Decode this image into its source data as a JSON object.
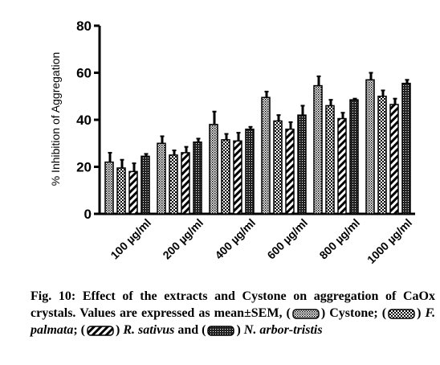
{
  "chart_data": {
    "type": "bar",
    "ylabel": "% Inhibition of Aggregation",
    "xlabel": "",
    "ylim": [
      0,
      80
    ],
    "yticks": [
      "0",
      "20",
      "40",
      "60",
      "80"
    ],
    "categories": [
      "100 µg/ml",
      "200 µg/ml",
      "400 µg/ml",
      "600 µg/ml",
      "800 µg/ml",
      "1000 µg/ml"
    ],
    "series": [
      {
        "name": "Cystone",
        "pattern": "dots",
        "values": [
          22,
          30,
          38,
          49.5,
          54.5,
          57
        ],
        "errors": [
          4,
          3,
          5.5,
          2.5,
          4,
          3
        ]
      },
      {
        "name": "F. palmata",
        "pattern": "checker",
        "values": [
          19.5,
          25,
          31.5,
          39.5,
          46,
          50
        ],
        "errors": [
          3.5,
          2,
          2.5,
          2.5,
          2.5,
          2.5
        ]
      },
      {
        "name": "R. sativus",
        "pattern": "diagonal",
        "values": [
          18,
          26,
          31,
          36,
          40.5,
          46.5
        ],
        "errors": [
          3.5,
          2.5,
          3.5,
          3,
          2.5,
          2.5
        ]
      },
      {
        "name": "N. arbor-tristis",
        "pattern": "crosshatch",
        "values": [
          24.5,
          30.5,
          36,
          42,
          48.5,
          55.5
        ],
        "errors": [
          1,
          1.5,
          1,
          4,
          0.5,
          1.5
        ]
      }
    ],
    "grid": false,
    "legend": "in caption"
  },
  "caption": {
    "lead": "Fig. 10: Effect of the extracts and Cystone on aggregation of CaOx crystals. Values are expressed as mean±SEM,",
    "item1": "Cystone;",
    "item2": "F. palmata",
    "sep2": ";",
    "item3": "R. sativus",
    "and": "and",
    "item4": "N. arbor-tristis"
  }
}
